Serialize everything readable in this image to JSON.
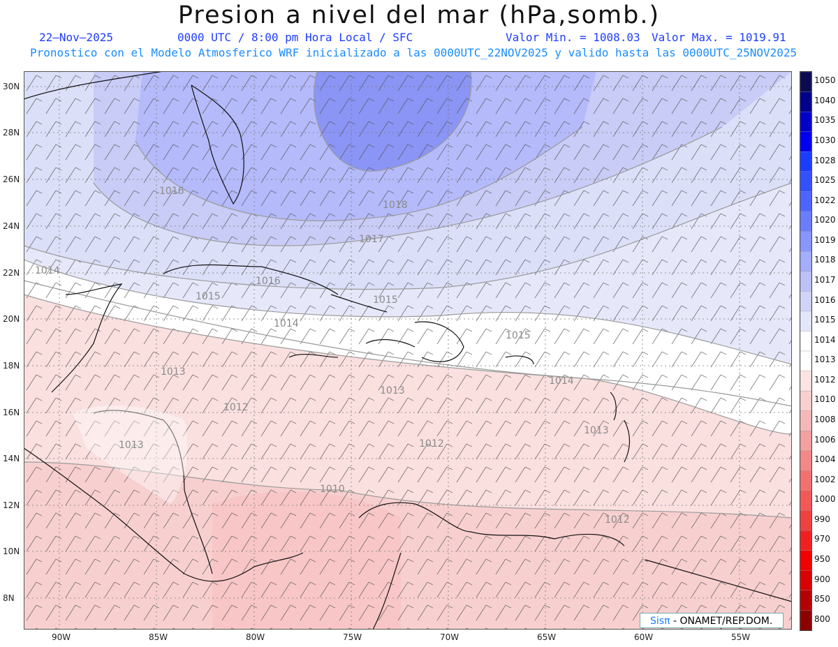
{
  "header": {
    "title": "Presion a nivel del mar (hPa,somb.)",
    "date": "22—Nov—2025",
    "time": "0000 UTC / 8:00 pm Hora Local / SFC",
    "min": "Valor Min. = 1008.03",
    "max": "Valor Max. = 1019.91",
    "forecast": "Pronostico con el Modelo Atmosferico WRF inicializado a las 0000UTC_22NOV2025 y valido hasta las  0000UTC_25NOV2025"
  },
  "axes": {
    "lat_labels": [
      "30N",
      "28N",
      "26N",
      "24N",
      "22N",
      "20N",
      "18N",
      "16N",
      "14N",
      "12N",
      "10N",
      "8N"
    ],
    "lon_labels": [
      "90W",
      "85W",
      "80W",
      "75W",
      "70W",
      "65W",
      "60W",
      "55W"
    ]
  },
  "colorbar": {
    "levels": [
      "1050",
      "1040",
      "1035",
      "1030",
      "1028",
      "1025",
      "1022",
      "1020",
      "1019",
      "1018",
      "1017",
      "1016",
      "1015",
      "1014",
      "1013",
      "1012",
      "1010",
      "1008",
      "1006",
      "1004",
      "1002",
      "1000",
      "990",
      "970",
      "950",
      "900",
      "850",
      "800"
    ],
    "colors": [
      "#0a0a50",
      "#00008c",
      "#0000c8",
      "#0000f0",
      "#1a3cff",
      "#3350ff",
      "#4d64ff",
      "#6a7cff",
      "#8896ff",
      "#a4aefc",
      "#bcc2f8",
      "#d0d4f8",
      "#e4e6fa",
      "#ffffff",
      "#ffffff",
      "#fbe4e4",
      "#f8d0d0",
      "#f5b8b8",
      "#f5a0a0",
      "#f48888",
      "#f37070",
      "#f25858",
      "#f04040",
      "#f02020",
      "#f00000",
      "#d80000",
      "#b40000",
      "#8c0000"
    ]
  },
  "contour_labels": [
    "1016",
    "1018",
    "1017",
    "1014",
    "1016",
    "1015",
    "1014",
    "1015",
    "1015",
    "1013",
    "1013",
    "1012",
    "1013",
    "1012",
    "1013",
    "1010",
    "1012",
    "1014"
  ],
  "credit": {
    "brand": "Sisπ",
    "org": " - ONAMET/REP.DOM."
  }
}
